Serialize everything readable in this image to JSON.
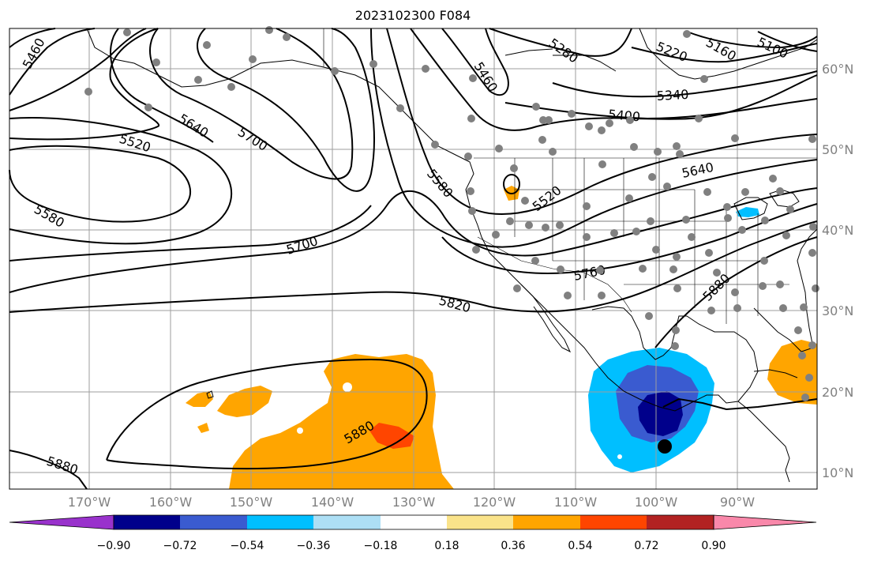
{
  "title": "2023102300 F084",
  "lon_labels": [
    "170°W",
    "160°W",
    "150°W",
    "140°W",
    "130°W",
    "120°W",
    "110°W",
    "100°W",
    "90°W"
  ],
  "lat_labels": [
    "60°N",
    "50°N",
    "40°N",
    "30°N",
    "20°N",
    "10°N"
  ],
  "contour_labels": {
    "c5460": "5460",
    "c5520": "5520",
    "c5580": "5580",
    "c5640": "5640",
    "c5700": "5700",
    "c5760": "5760",
    "c5820": "5820",
    "c5880": "5880",
    "c5280": "5280",
    "c5220": "5220",
    "c5160": "5160",
    "c5100": "5100",
    "c5340": "5340",
    "c5400": "5400"
  },
  "colorbar": {
    "ticks": [
      "−0.90",
      "−0.72",
      "−0.54",
      "−0.36",
      "−0.18",
      "0.18",
      "0.36",
      "0.54",
      "0.72",
      "0.90"
    ],
    "colors": [
      "#9932CC",
      "#00008B",
      "#3A5BD0",
      "#00BFFF",
      "#ADDFF5",
      "#FFFFFF",
      "#FAE38A",
      "#FFA500",
      "#FF4500",
      "#B22222",
      "#F988AA"
    ]
  },
  "colors": {
    "contour": "#000000",
    "coast": "#000000",
    "grid": "#9e9e9e",
    "station": "#808080",
    "tick_label": "#808080"
  }
}
